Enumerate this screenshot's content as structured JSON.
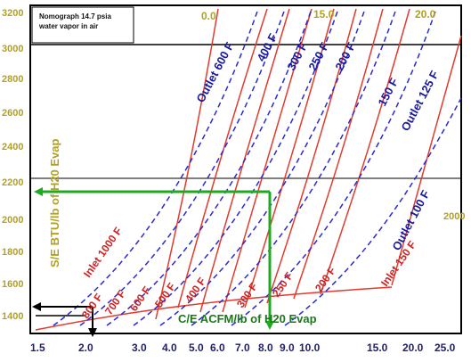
{
  "chart_data": {
    "type": "line",
    "title": "Nomograph 14.7 psia water vapor in air",
    "title_lines": [
      "Nomograph 14.7 psia",
      "water vapor in air"
    ],
    "ylabel": "S/E BTU/lb of H20 Evap",
    "xlabel": "C/E ACFM/lb of H20 Evap",
    "x_ticks": [
      "1.5",
      "2.0",
      "3.0",
      "4.0",
      "5.0",
      "6.0",
      "7.0",
      "8.0",
      "9.0",
      "10.0",
      "15.0",
      "20.0",
      "25.0"
    ],
    "y_ticks": [
      "1400",
      "1600",
      "1800",
      "2000",
      "2200",
      "2400",
      "2600",
      "2800",
      "3000",
      "3200"
    ],
    "top_ticks": [
      "0.0",
      "15.0",
      "20.0"
    ],
    "right_tick": "2000",
    "outlet_series": [
      "Outlet 600 F",
      "400 F",
      "300 F",
      "250 F",
      "200 F",
      "150 F",
      "Outlet 125 F",
      "Outlet 100 F"
    ],
    "inlet_series": [
      "Inlet 1000 F",
      "800 F",
      "700 F",
      "600 F",
      "500 F",
      "400 F",
      "300 F",
      "250 F",
      "200 F",
      "Inlet 150 F"
    ],
    "example_path": [
      {
        "x": 7.2,
        "y": 2150
      },
      {
        "x": 1.5,
        "y": 2150
      }
    ],
    "colors": {
      "inlet": "#e23b2e",
      "outlet": "#2a2ad0",
      "example_green": "#1faa1f",
      "example_black": "#000000",
      "y_tick": "#b3a21c",
      "x_tick": "#1f1f6b"
    }
  }
}
